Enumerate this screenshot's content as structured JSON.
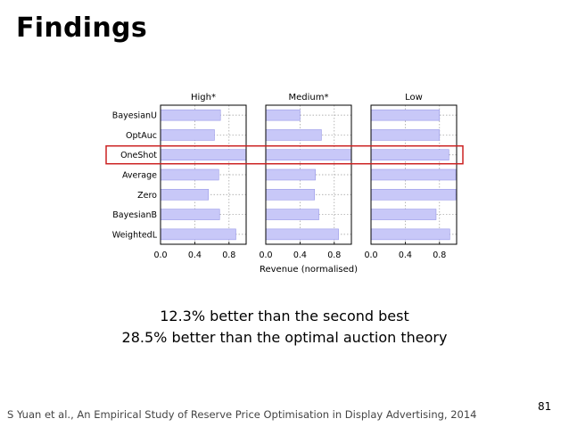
{
  "slide": {
    "title": "Findings",
    "caption_line1": "12.3% better than the second best",
    "caption_line2": "28.5% better than the optimal auction theory",
    "citation": "S Yuan et al., An Empirical Study of Reserve Price Optimisation in Display Advertising, 2014",
    "slide_number": "81"
  },
  "chart_data": {
    "type": "bar",
    "orientation": "horizontal",
    "categories": [
      "BayesianU",
      "OptAuc",
      "OneShot",
      "Average",
      "Zero",
      "BayesianB",
      "WeightedL"
    ],
    "panels": [
      {
        "name": "High*",
        "values": [
          0.7,
          0.63,
          1.0,
          0.68,
          0.56,
          0.69,
          0.88
        ]
      },
      {
        "name": "Medium*",
        "values": [
          0.4,
          0.65,
          1.0,
          0.58,
          0.57,
          0.62,
          0.85
        ]
      },
      {
        "name": "Low",
        "values": [
          0.8,
          0.8,
          0.91,
          0.99,
          0.99,
          0.76,
          0.92
        ]
      }
    ],
    "xlabel": "Revenue (normalised)",
    "xlim": [
      0,
      1.0
    ],
    "xticks": [
      "0.0",
      "0.4",
      "0.8"
    ],
    "xtick_values": [
      0,
      0.4,
      0.8
    ],
    "grid": true,
    "highlight_category": "OneShot",
    "colors": {
      "bar_fill": "#c8c8f8",
      "bar_edge": "#9a9ae8",
      "highlight": "#cc2222"
    }
  }
}
